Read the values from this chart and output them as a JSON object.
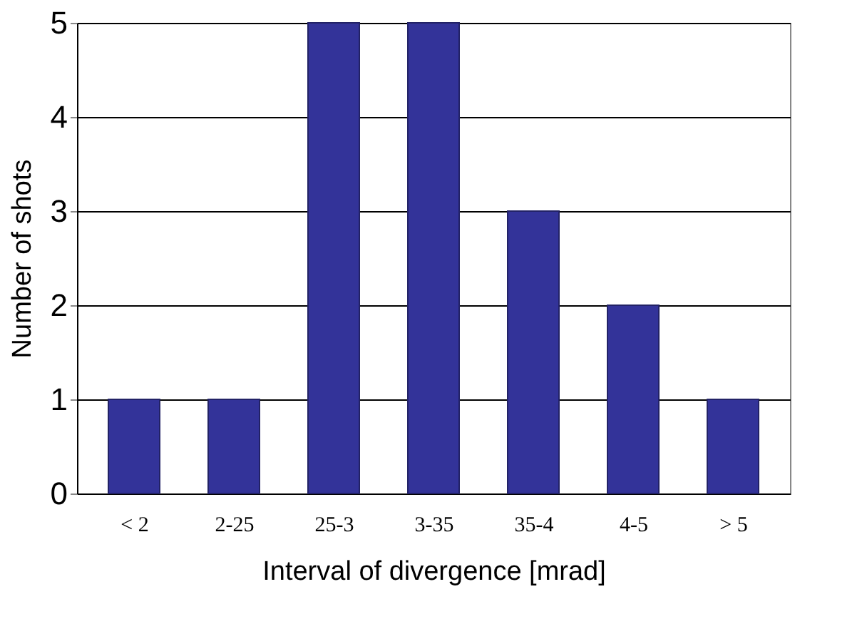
{
  "chart_data": {
    "type": "bar",
    "xlabel": "Interval of divergence [mrad]",
    "ylabel": "Number of shots",
    "categories": [
      "< 2",
      "2-25",
      "25-3",
      "3-35",
      "35-4",
      "4-5",
      "> 5"
    ],
    "values": [
      1,
      1,
      5,
      5,
      3,
      2,
      1
    ],
    "color": "#333399",
    "ylim": [
      0,
      5
    ],
    "yticks": [
      0,
      1,
      2,
      3,
      4,
      5
    ],
    "grid": "y"
  }
}
